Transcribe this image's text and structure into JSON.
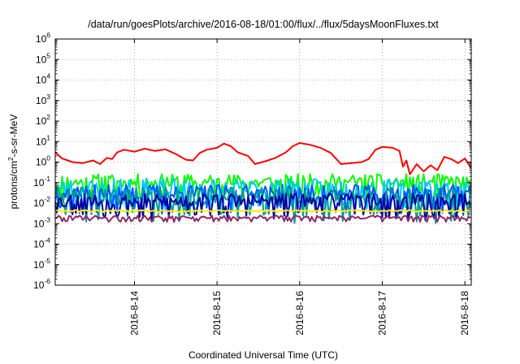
{
  "chart_data": {
    "type": "line",
    "title": "/data/run/goesPlots/archive/2016-08-18/01:00/flux/../flux/5daysMoonFluxes.txt",
    "xlabel": "Coordinated Universal Time (UTC)",
    "ylabel": "protons/cm2-s-sr-MeV",
    "ylabel_parts": [
      "protons/cm",
      "2",
      "-s-sr-MeV"
    ],
    "yscale": "log",
    "ylim": [
      1e-06,
      1000000.0
    ],
    "xlim": [
      "2016-08-13 01:00",
      "2016-08-18 01:50"
    ],
    "grid": true,
    "legend": "none",
    "yticks": [
      {
        "value": 1000000.0,
        "base": "10",
        "exp": "6"
      },
      {
        "value": 100000.0,
        "base": "10",
        "exp": "5"
      },
      {
        "value": 10000.0,
        "base": "10",
        "exp": "4"
      },
      {
        "value": 1000.0,
        "base": "10",
        "exp": "3"
      },
      {
        "value": 100.0,
        "base": "10",
        "exp": "2"
      },
      {
        "value": 10.0,
        "base": "10",
        "exp": "1"
      },
      {
        "value": 1.0,
        "base": "10",
        "exp": "0"
      },
      {
        "value": 0.1,
        "base": "10",
        "exp": "-1"
      },
      {
        "value": 0.01,
        "base": "10",
        "exp": "-2"
      },
      {
        "value": 0.001,
        "base": "10",
        "exp": "-3"
      },
      {
        "value": 0.0001,
        "base": "10",
        "exp": "-4"
      },
      {
        "value": 1e-05,
        "base": "10",
        "exp": "-5"
      },
      {
        "value": 1e-06,
        "base": "10",
        "exp": "-6"
      }
    ],
    "xticks": [
      {
        "date": "2016-08-14",
        "label": "2016-8-14"
      },
      {
        "date": "2016-08-15",
        "label": "2016-8-15"
      },
      {
        "date": "2016-08-16",
        "label": "2016-8-16"
      },
      {
        "date": "2016-08-17",
        "label": "2016-8-17"
      },
      {
        "date": "2016-08-18",
        "label": "2016-8-18"
      }
    ],
    "series": [
      {
        "color": "#ff0000",
        "points": [
          [
            "2016-08-13 01:00",
            3.0
          ],
          [
            "2016-08-13 03:00",
            1.5
          ],
          [
            "2016-08-13 06:00",
            1.0
          ],
          [
            "2016-08-13 09:00",
            0.9
          ],
          [
            "2016-08-13 12:00",
            1.2
          ],
          [
            "2016-08-13 14:00",
            0.8
          ],
          [
            "2016-08-13 16:00",
            1.6
          ],
          [
            "2016-08-13 17:30",
            1.4
          ],
          [
            "2016-08-13 19:00",
            3.0
          ],
          [
            "2016-08-13 21:00",
            4.0
          ],
          [
            "2016-08-14 00:00",
            3.2
          ],
          [
            "2016-08-14 03:00",
            4.5
          ],
          [
            "2016-08-14 06:00",
            3.5
          ],
          [
            "2016-08-14 09:00",
            4.2
          ],
          [
            "2016-08-14 12:00",
            2.5
          ],
          [
            "2016-08-14 15:00",
            1.3
          ],
          [
            "2016-08-14 17:00",
            1.2
          ],
          [
            "2016-08-14 19:00",
            2.8
          ],
          [
            "2016-08-14 21:00",
            4.0
          ],
          [
            "2016-08-15 00:00",
            5.0
          ],
          [
            "2016-08-15 02:00",
            8.0
          ],
          [
            "2016-08-15 04:00",
            6.0
          ],
          [
            "2016-08-15 06:00",
            3.0
          ],
          [
            "2016-08-15 09:00",
            2.0
          ],
          [
            "2016-08-15 11:00",
            0.8
          ],
          [
            "2016-08-15 14:00",
            1.1
          ],
          [
            "2016-08-15 17:00",
            1.6
          ],
          [
            "2016-08-15 20:00",
            3.0
          ],
          [
            "2016-08-15 22:00",
            6.0
          ],
          [
            "2016-08-16 00:00",
            8.5
          ],
          [
            "2016-08-16 03:00",
            7.0
          ],
          [
            "2016-08-16 06:00",
            5.0
          ],
          [
            "2016-08-16 09:00",
            2.8
          ],
          [
            "2016-08-16 12:00",
            0.8
          ],
          [
            "2016-08-16 15:00",
            0.9
          ],
          [
            "2016-08-16 18:00",
            1.0
          ],
          [
            "2016-08-16 20:00",
            1.4
          ],
          [
            "2016-08-16 22:00",
            4.0
          ],
          [
            "2016-08-17 00:00",
            5.5
          ],
          [
            "2016-08-17 03:00",
            5.0
          ],
          [
            "2016-08-17 05:00",
            3.5
          ],
          [
            "2016-08-17 06:00",
            0.6
          ],
          [
            "2016-08-17 07:00",
            1.2
          ],
          [
            "2016-08-17 08:00",
            0.25
          ],
          [
            "2016-08-17 10:00",
            0.8
          ],
          [
            "2016-08-17 12:00",
            0.35
          ],
          [
            "2016-08-17 14:00",
            0.7
          ],
          [
            "2016-08-17 16:00",
            0.4
          ],
          [
            "2016-08-17 18:00",
            1.8
          ],
          [
            "2016-08-17 20:00",
            1.4
          ],
          [
            "2016-08-17 22:00",
            0.9
          ],
          [
            "2016-08-18 00:00",
            1.5
          ],
          [
            "2016-08-18 01:50",
            0.5
          ]
        ]
      },
      {
        "color": "#00ff00",
        "level": 0.1,
        "noise": 0.42,
        "seed": 11
      },
      {
        "color": "#00c8ff",
        "level": 0.048,
        "noise": 0.5,
        "seed": 23
      },
      {
        "color": "#0055ff",
        "level": 0.028,
        "noise": 0.45,
        "seed": 37
      },
      {
        "color": "#009999",
        "level": 0.017,
        "noise": 0.55,
        "seed": 41
      },
      {
        "color": "#0000a0",
        "level": 0.012,
        "noise": 0.4,
        "seed": 53
      },
      {
        "color": "#ffee00",
        "level": 0.0042,
        "noise": 0.04,
        "seed": 61
      },
      {
        "color": "#8b2a6a",
        "level": 0.002,
        "noise": 0.1,
        "seed": 79
      }
    ]
  }
}
